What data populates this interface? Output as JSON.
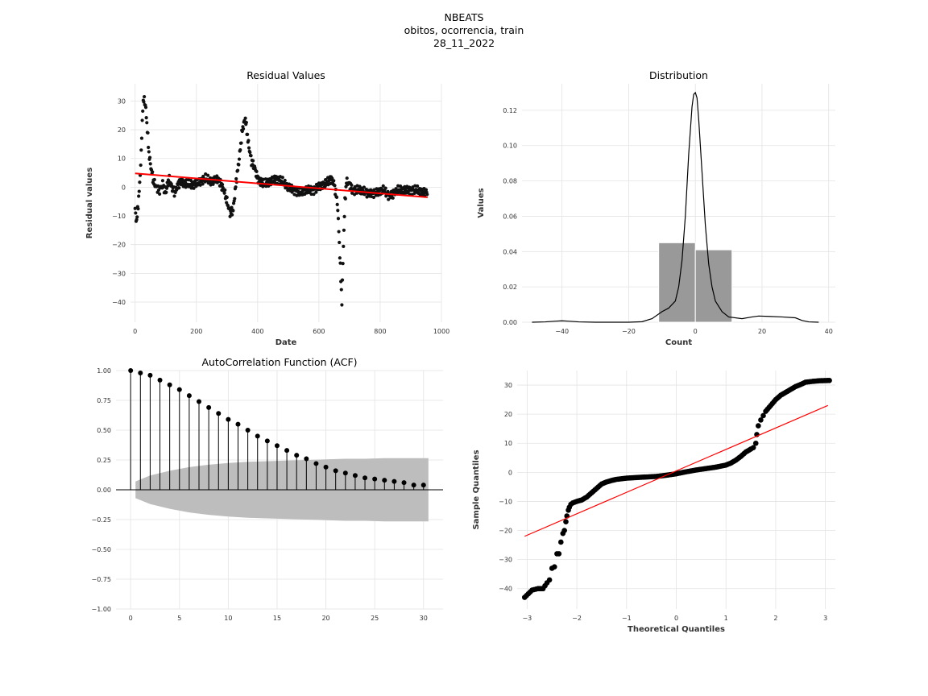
{
  "figure": {
    "title_lines": [
      "NBEATS",
      "obitos, ocorrencia, train",
      "28_11_2022"
    ]
  },
  "chart_data": [
    {
      "type": "scatter",
      "title": "Residual Values",
      "xlabel": "Date",
      "ylabel": "Residual values",
      "xlim": [
        -15,
        1000
      ],
      "ylim": [
        -47,
        36
      ],
      "xticks": [
        0,
        200,
        400,
        600,
        800,
        1000
      ],
      "yticks": [
        -40,
        -30,
        -20,
        -10,
        0,
        10,
        20,
        30
      ],
      "grid": true,
      "trend_line": {
        "x": [
          0,
          955
        ],
        "y": [
          4.8,
          -3.5
        ],
        "color": "#ff0000"
      },
      "series_segments": [
        [
          0,
          -8
        ],
        [
          5,
          -12
        ],
        [
          10,
          -6
        ],
        [
          15,
          1
        ],
        [
          20,
          12
        ],
        [
          25,
          28
        ],
        [
          30,
          31
        ],
        [
          35,
          27
        ],
        [
          40,
          20
        ],
        [
          45,
          12
        ],
        [
          50,
          8
        ],
        [
          55,
          5
        ],
        [
          60,
          2
        ],
        [
          70,
          0
        ],
        [
          80,
          -1
        ],
        [
          90,
          1
        ],
        [
          100,
          -2
        ],
        [
          110,
          3
        ],
        [
          120,
          0
        ],
        [
          130,
          -2
        ],
        [
          140,
          1
        ],
        [
          150,
          2
        ],
        [
          170,
          1
        ],
        [
          190,
          1
        ],
        [
          210,
          2
        ],
        [
          230,
          3
        ],
        [
          250,
          2
        ],
        [
          270,
          3
        ],
        [
          280,
          1
        ],
        [
          290,
          -1
        ],
        [
          300,
          -5
        ],
        [
          310,
          -9
        ],
        [
          320,
          -8
        ],
        [
          330,
          2
        ],
        [
          340,
          10
        ],
        [
          350,
          20
        ],
        [
          360,
          24
        ],
        [
          370,
          15
        ],
        [
          380,
          9
        ],
        [
          390,
          7
        ],
        [
          400,
          3
        ],
        [
          420,
          1
        ],
        [
          440,
          2
        ],
        [
          460,
          3
        ],
        [
          480,
          2
        ],
        [
          500,
          0
        ],
        [
          520,
          -1
        ],
        [
          540,
          -2
        ],
        [
          560,
          -1
        ],
        [
          580,
          -1
        ],
        [
          600,
          0
        ],
        [
          620,
          1
        ],
        [
          640,
          3
        ],
        [
          650,
          1
        ],
        [
          660,
          -5
        ],
        [
          665,
          -15
        ],
        [
          670,
          -28
        ],
        [
          675,
          -40
        ],
        [
          680,
          -20
        ],
        [
          685,
          -5
        ],
        [
          690,
          2
        ],
        [
          700,
          1
        ],
        [
          710,
          -1
        ],
        [
          730,
          -1
        ],
        [
          760,
          -2
        ],
        [
          790,
          -2
        ],
        [
          810,
          -1
        ],
        [
          830,
          -3
        ],
        [
          845,
          -2
        ],
        [
          860,
          -1
        ],
        [
          880,
          -1
        ],
        [
          900,
          -1
        ],
        [
          920,
          -1
        ],
        [
          940,
          -2
        ],
        [
          955,
          -1.5
        ]
      ]
    },
    {
      "type": "histogram",
      "title": "Distribution",
      "xlabel": "Count",
      "ylabel": "Values",
      "xlim": [
        -52,
        42
      ],
      "ylim": [
        0,
        0.135
      ],
      "xticks": [
        -40,
        -20,
        0,
        20,
        40
      ],
      "yticks": [
        0.0,
        0.02,
        0.04,
        0.06,
        0.08,
        0.1,
        0.12
      ],
      "bins": [
        {
          "x0": -11,
          "x1": 0,
          "value": 0.045
        },
        {
          "x0": 0,
          "x1": 11,
          "value": 0.041
        }
      ],
      "bar_color": "#999999",
      "kde": {
        "x": [
          -49,
          -45,
          -42,
          -40,
          -38,
          -35,
          -30,
          -25,
          -20,
          -16,
          -13,
          -10,
          -8,
          -6,
          -5,
          -4,
          -3,
          -2,
          -1,
          -0.5,
          0,
          0.5,
          1,
          2,
          3,
          4,
          5,
          6,
          8,
          10,
          14,
          17,
          19,
          22,
          26,
          30,
          32,
          34,
          37
        ],
        "y": [
          0.0,
          0.0002,
          0.0006,
          0.0008,
          0.0006,
          0.0002,
          0.0,
          0.0,
          0.0,
          0.0003,
          0.002,
          0.006,
          0.008,
          0.012,
          0.02,
          0.035,
          0.06,
          0.095,
          0.122,
          0.129,
          0.13,
          0.127,
          0.115,
          0.085,
          0.055,
          0.033,
          0.02,
          0.012,
          0.006,
          0.003,
          0.002,
          0.003,
          0.0035,
          0.0033,
          0.003,
          0.0025,
          0.001,
          0.0002,
          0.0
        ]
      }
    },
    {
      "type": "stem",
      "title": "AutoCorrelation Function (ACF)",
      "xlabel": "",
      "ylabel": "",
      "xlim": [
        -1.5,
        32
      ],
      "ylim": [
        -1.0,
        1.0
      ],
      "xticks": [
        0,
        5,
        10,
        15,
        20,
        25,
        30
      ],
      "yticks": [
        -1.0,
        -0.75,
        -0.5,
        -0.25,
        0.0,
        0.25,
        0.5,
        0.75,
        1.0
      ],
      "ytick_labels": [
        "−1.00",
        "−0.75",
        "−0.50",
        "−0.25",
        "0.00",
        "0.25",
        "0.50",
        "0.75",
        "1.00"
      ],
      "lags": [
        0,
        1,
        2,
        3,
        4,
        5,
        6,
        7,
        8,
        9,
        10,
        11,
        12,
        13,
        14,
        15,
        16,
        17,
        18,
        19,
        20,
        21,
        22,
        23,
        24,
        25,
        26,
        27,
        28,
        29,
        30
      ],
      "values": [
        1.0,
        0.98,
        0.96,
        0.92,
        0.88,
        0.84,
        0.79,
        0.74,
        0.69,
        0.64,
        0.59,
        0.55,
        0.5,
        0.45,
        0.41,
        0.37,
        0.33,
        0.29,
        0.26,
        0.22,
        0.19,
        0.16,
        0.14,
        0.12,
        0.1,
        0.09,
        0.08,
        0.07,
        0.06,
        0.04,
        0.04
      ],
      "confidence_band": {
        "x": [
          0.5,
          2,
          4,
          6,
          8,
          10,
          12,
          14,
          16,
          18,
          20,
          22,
          24,
          26,
          28,
          30.5
        ],
        "upper": [
          0.07,
          0.12,
          0.16,
          0.19,
          0.21,
          0.225,
          0.235,
          0.24,
          0.245,
          0.25,
          0.255,
          0.26,
          0.26,
          0.265,
          0.265,
          0.265
        ],
        "lower": [
          -0.07,
          -0.12,
          -0.16,
          -0.19,
          -0.21,
          -0.225,
          -0.235,
          -0.24,
          -0.245,
          -0.25,
          -0.255,
          -0.26,
          -0.26,
          -0.265,
          -0.265,
          -0.265
        ],
        "color": "#bdbdbd"
      }
    },
    {
      "type": "scatter",
      "title": "",
      "xlabel": "Theoretical Quantiles",
      "ylabel": "Sample Quantiles",
      "xlim": [
        -3.2,
        3.2
      ],
      "ylim": [
        -47,
        35
      ],
      "xticks": [
        -3,
        -2,
        -1,
        0,
        1,
        2,
        3
      ],
      "yticks": [
        -40,
        -30,
        -20,
        -10,
        0,
        10,
        20,
        30
      ],
      "xtick_labels": [
        "−3",
        "−2",
        "−1",
        "0",
        "1",
        "2",
        "3"
      ],
      "ytick_labels": [
        "−40",
        "−30",
        "−20",
        "−10",
        "0",
        "10",
        "20",
        "30"
      ],
      "reference_line": {
        "x": [
          -3.05,
          3.05
        ],
        "y": [
          -22,
          23
        ],
        "color": "#ff0000"
      },
      "points": [
        [
          -3.05,
          -43
        ],
        [
          -2.9,
          -40.5
        ],
        [
          -2.78,
          -40
        ],
        [
          -2.68,
          -40
        ],
        [
          -2.6,
          -38
        ],
        [
          -2.55,
          -37
        ],
        [
          -2.5,
          -33
        ],
        [
          -2.45,
          -32.5
        ],
        [
          -2.4,
          -28
        ],
        [
          -2.36,
          -28
        ],
        [
          -2.32,
          -24
        ],
        [
          -2.28,
          -21
        ],
        [
          -2.25,
          -20
        ],
        [
          -2.22,
          -17
        ],
        [
          -2.2,
          -15
        ],
        [
          -2.17,
          -13
        ],
        [
          -2.15,
          -12
        ],
        [
          -2.12,
          -11
        ],
        [
          -2.08,
          -10.5
        ],
        [
          -2.0,
          -10
        ],
        [
          -1.9,
          -9.5
        ],
        [
          -1.8,
          -8.5
        ],
        [
          -1.7,
          -7
        ],
        [
          -1.6,
          -5.5
        ],
        [
          -1.5,
          -4
        ],
        [
          -1.4,
          -3.3
        ],
        [
          -1.3,
          -2.8
        ],
        [
          -1.2,
          -2.4
        ],
        [
          -1.1,
          -2.2
        ],
        [
          -1.0,
          -2.0
        ],
        [
          -0.8,
          -1.8
        ],
        [
          -0.6,
          -1.6
        ],
        [
          -0.4,
          -1.4
        ],
        [
          -0.2,
          -1.0
        ],
        [
          0.0,
          -0.5
        ],
        [
          0.2,
          0.2
        ],
        [
          0.4,
          0.8
        ],
        [
          0.6,
          1.3
        ],
        [
          0.8,
          1.8
        ],
        [
          1.0,
          2.5
        ],
        [
          1.1,
          3.2
        ],
        [
          1.2,
          4.2
        ],
        [
          1.3,
          5.5
        ],
        [
          1.4,
          7.0
        ],
        [
          1.5,
          8.0
        ],
        [
          1.55,
          8.5
        ],
        [
          1.6,
          10
        ],
        [
          1.62,
          13
        ],
        [
          1.65,
          16
        ],
        [
          1.7,
          18
        ],
        [
          1.75,
          19.5
        ],
        [
          1.8,
          21
        ],
        [
          1.9,
          23
        ],
        [
          2.0,
          25
        ],
        [
          2.1,
          26.5
        ],
        [
          2.2,
          27.5
        ],
        [
          2.3,
          28.5
        ],
        [
          2.4,
          29.5
        ],
        [
          2.5,
          30.2
        ],
        [
          2.6,
          31
        ],
        [
          2.75,
          31.3
        ],
        [
          2.88,
          31.5
        ],
        [
          3.08,
          31.6
        ]
      ]
    }
  ]
}
